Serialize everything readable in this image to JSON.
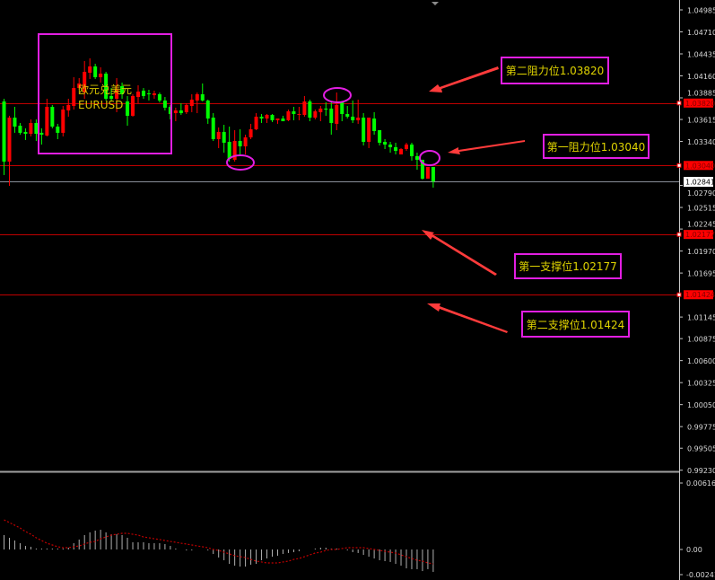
{
  "chart_data": {
    "type": "candlestick",
    "symbol_name": "欧元兑美元",
    "symbol": "EURUSD",
    "colors": {
      "down": "#00ff00",
      "up": "#ff0000",
      "level_line": "#c00000",
      "bid_line": "#8a8f99",
      "annotation_border": "#e21ee2",
      "annotation_text": "#e0d400",
      "arrow": "#ff3b3b",
      "macd_hist": "#b0b0b0",
      "macd_signal": "#c00000"
    },
    "price_axis": {
      "range": [
        0.9923,
        1.04985
      ],
      "ticks": [
        "1.04985",
        "1.04710",
        "1.04435",
        "1.04160",
        "1.03885",
        "1.03615",
        "1.03340",
        "1.02790",
        "1.02515",
        "1.02245",
        "1.01970",
        "1.01695",
        "1.01145",
        "1.00875",
        "1.00600",
        "1.00325",
        "1.00050",
        "0.99775",
        "0.99505",
        "0.99230"
      ],
      "bid": "1.02841"
    },
    "levels": [
      {
        "price": "1.03820",
        "label": "第二阻力位1.03820"
      },
      {
        "price": "1.03040",
        "label": "第一阻力位1.03040"
      },
      {
        "price": "1.02177",
        "label": "第一支撑位1.02177"
      },
      {
        "price": "1.01424",
        "label": "第二支撑位1.01424"
      }
    ],
    "ohlc": [
      [
        1.0384,
        1.03874,
        1.0292,
        1.03088
      ],
      [
        1.03088,
        1.03661,
        1.02785,
        1.03638
      ],
      [
        1.03638,
        1.03773,
        1.03448,
        1.03526
      ],
      [
        1.03537,
        1.03571,
        1.03425,
        1.03448
      ],
      [
        1.03459,
        1.03504,
        1.03358,
        1.03436
      ],
      [
        1.03436,
        1.03616,
        1.03403,
        1.03571
      ],
      [
        1.03571,
        1.03616,
        1.03346,
        1.03436
      ],
      [
        1.03448,
        1.03504,
        1.03301,
        1.03425
      ],
      [
        1.03414,
        1.03874,
        1.03403,
        1.03773
      ],
      [
        1.03773,
        1.03796,
        1.03504,
        1.03526
      ],
      [
        1.03526,
        1.0356,
        1.03369,
        1.03448
      ],
      [
        1.03448,
        1.03784,
        1.03403,
        1.03739
      ],
      [
        1.03728,
        1.03874,
        1.0365,
        1.03796
      ],
      [
        1.03784,
        1.04143,
        1.03739,
        1.04008
      ],
      [
        1.04008,
        1.04132,
        1.03986,
        1.04065
      ],
      [
        1.03952,
        1.04345,
        1.03874,
        1.0421
      ],
      [
        1.04199,
        1.04379,
        1.04121,
        1.04278
      ],
      [
        1.04278,
        1.04311,
        1.04121,
        1.04143
      ],
      [
        1.04143,
        1.04267,
        1.04076,
        1.04188
      ],
      [
        1.04188,
        1.0421,
        1.03852,
        1.03874
      ],
      [
        1.03908,
        1.04008,
        1.0384,
        1.03874
      ],
      [
        1.03874,
        1.04132,
        1.03706,
        1.03986
      ],
      [
        1.04031,
        1.04076,
        1.03874,
        1.0393
      ],
      [
        1.0384,
        1.03908,
        1.03537,
        1.03661
      ],
      [
        1.03661,
        1.0393,
        1.0365,
        1.03908
      ],
      [
        1.03896,
        1.04042,
        1.03818,
        1.03963
      ],
      [
        1.03975,
        1.04008,
        1.03874,
        1.03908
      ],
      [
        1.03941,
        1.03986,
        1.03852,
        1.0393
      ],
      [
        1.03919,
        1.03975,
        1.03874,
        1.03941
      ],
      [
        1.0393,
        1.03952,
        1.03829,
        1.03852
      ],
      [
        1.03852,
        1.03896,
        1.03728,
        1.03762
      ],
      [
        1.03773,
        1.03796,
        1.03616,
        1.03683
      ],
      [
        1.03694,
        1.03762,
        1.03593,
        1.03728
      ],
      [
        1.03728,
        1.03818,
        1.03672,
        1.03694
      ],
      [
        1.03706,
        1.03818,
        1.03683,
        1.03796
      ],
      [
        1.03784,
        1.0393,
        1.03706,
        1.03863
      ],
      [
        1.03852,
        1.03952,
        1.03694,
        1.0393
      ],
      [
        1.0393,
        1.04065,
        1.0384,
        1.03852
      ],
      [
        1.03852,
        1.03863,
        1.0356,
        1.03627
      ],
      [
        1.03638,
        1.03694,
        1.03346,
        1.03369
      ],
      [
        1.03369,
        1.03515,
        1.03257,
        1.03459
      ],
      [
        1.03459,
        1.03548,
        1.032,
        1.03324
      ],
      [
        1.03335,
        1.03526,
        1.03088,
        1.03122
      ],
      [
        1.03111,
        1.03481,
        1.03088,
        1.03346
      ],
      [
        1.03346,
        1.03492,
        1.03178,
        1.03279
      ],
      [
        1.03279,
        1.03425,
        1.03178,
        1.03391
      ],
      [
        1.03391,
        1.0356,
        1.03369,
        1.03492
      ],
      [
        1.03492,
        1.03694,
        1.03481,
        1.0365
      ],
      [
        1.0365,
        1.03683,
        1.03571,
        1.03627
      ],
      [
        1.03627,
        1.03683,
        1.03571,
        1.03672
      ],
      [
        1.03672,
        1.03683,
        1.03582,
        1.03605
      ],
      [
        1.03605,
        1.03627,
        1.0356,
        1.03627
      ],
      [
        1.03627,
        1.03661,
        1.03593,
        1.03593
      ],
      [
        1.03605,
        1.03739,
        1.03593,
        1.03717
      ],
      [
        1.03717,
        1.03773,
        1.03605,
        1.03683
      ],
      [
        1.03672,
        1.03773,
        1.03605,
        1.03683
      ],
      [
        1.03672,
        1.03908,
        1.0365,
        1.0384
      ],
      [
        1.0384,
        1.03863,
        1.03593,
        1.03638
      ],
      [
        1.03638,
        1.03739,
        1.03616,
        1.03717
      ],
      [
        1.03706,
        1.03784,
        1.03593,
        1.03751
      ],
      [
        1.03751,
        1.03829,
        1.03661,
        1.03739
      ],
      [
        1.03751,
        1.03829,
        1.03425,
        1.03571
      ],
      [
        1.0356,
        1.03952,
        1.03481,
        1.03796
      ],
      [
        1.03829,
        1.0384,
        1.03593,
        1.03683
      ],
      [
        1.03683,
        1.03784,
        1.03627,
        1.0365
      ],
      [
        1.0365,
        1.03852,
        1.03571,
        1.03605
      ],
      [
        1.03605,
        1.03863,
        1.0356,
        1.03638
      ],
      [
        1.03638,
        1.03694,
        1.0329,
        1.03335
      ],
      [
        1.03335,
        1.03638,
        1.03257,
        1.03638
      ],
      [
        1.03627,
        1.03706,
        1.03425,
        1.0347
      ],
      [
        1.03481,
        1.03481,
        1.0329,
        1.03324
      ],
      [
        1.03335,
        1.03369,
        1.03245,
        1.03301
      ],
      [
        1.03301,
        1.03335,
        1.032,
        1.03268
      ],
      [
        1.03268,
        1.03324,
        1.03178,
        1.03223
      ],
      [
        1.03178,
        1.03257,
        1.03178,
        1.03245
      ],
      [
        1.03245,
        1.03324,
        1.03223,
        1.03301
      ],
      [
        1.03301,
        1.03324,
        1.031,
        1.03156
      ],
      [
        1.03156,
        1.032,
        1.02987,
        1.03111
      ],
      [
        1.03111,
        1.03111,
        1.02864,
        1.02875
      ],
      [
        1.02875,
        1.03021,
        1.02875,
        1.03021
      ],
      [
        1.03021,
        1.03021,
        1.02763,
        1.02841
      ]
    ],
    "macd": {
      "axis_top": "0.006162",
      "axis_zero": "0.00",
      "axis_bottom": "-0.002419",
      "range": [
        -0.002419,
        0.006162
      ],
      "histogram": [
        0.00122,
        0.00099,
        0.00076,
        0.00053,
        0.0003,
        0.00023,
        8e-05,
        8e-05,
        8e-05,
        8e-05,
        8e-05,
        8e-05,
        0.00015,
        0.00053,
        0.00084,
        0.00122,
        0.00145,
        0.0016,
        0.00167,
        0.00145,
        0.00129,
        0.00129,
        0.00122,
        0.00099,
        0.00061,
        0.00061,
        0.00061,
        0.00053,
        0.00053,
        0.00053,
        0.00046,
        0.0003,
        8e-05,
        0,
        -8e-05,
        -8e-05,
        0,
        0,
        -8e-05,
        -0.00038,
        -0.00068,
        -0.00091,
        -0.00122,
        -0.00137,
        -0.00145,
        -0.00145,
        -0.00129,
        -0.00122,
        -0.00091,
        -0.00076,
        -0.00061,
        -0.00053,
        -0.00038,
        -0.0003,
        -0.00023,
        -0.00015,
        0,
        0,
        8e-05,
        0.00015,
        0.00015,
        8e-05,
        8e-05,
        0,
        -8e-05,
        -0.00023,
        -0.0003,
        -0.00046,
        -0.00061,
        -0.00076,
        -0.00091,
        -0.00099,
        -0.00106,
        -0.00122,
        -0.00137,
        -0.0016,
        -0.00167,
        -0.00167,
        -0.00183,
        -0.00167,
        -0.0019
      ],
      "signal": [
        0.00251,
        0.00228,
        0.00205,
        0.00182,
        0.00152,
        0.00129,
        0.00099,
        0.00076,
        0.00053,
        0.00038,
        0.00023,
        0.00015,
        0.00015,
        0.00023,
        0.0003,
        0.00046,
        0.00061,
        0.00068,
        0.00091,
        0.00106,
        0.00122,
        0.00129,
        0.00137,
        0.00137,
        0.00129,
        0.00122,
        0.00106,
        0.00099,
        0.00091,
        0.00084,
        0.00076,
        0.00068,
        0.00061,
        0.00053,
        0.00046,
        0.00038,
        0.0003,
        0.00023,
        0.00015,
        0,
        -8e-05,
        -0.00023,
        -0.00038,
        -0.00053,
        -0.00061,
        -0.00068,
        -0.00084,
        -0.00099,
        -0.00106,
        -0.00114,
        -0.00114,
        -0.00114,
        -0.00106,
        -0.00099,
        -0.00084,
        -0.00076,
        -0.00061,
        -0.00046,
        -0.0003,
        -0.00023,
        -8e-05,
        0,
        0,
        8e-05,
        0.00015,
        0.00015,
        0.00015,
        0.00015,
        8e-05,
        0,
        -8e-05,
        -0.00015,
        -0.00023,
        -0.0003,
        -0.00046,
        -0.00061,
        -0.00076,
        -0.00091,
        -0.00099,
        -0.00114,
        -0.00122
      ]
    }
  }
}
